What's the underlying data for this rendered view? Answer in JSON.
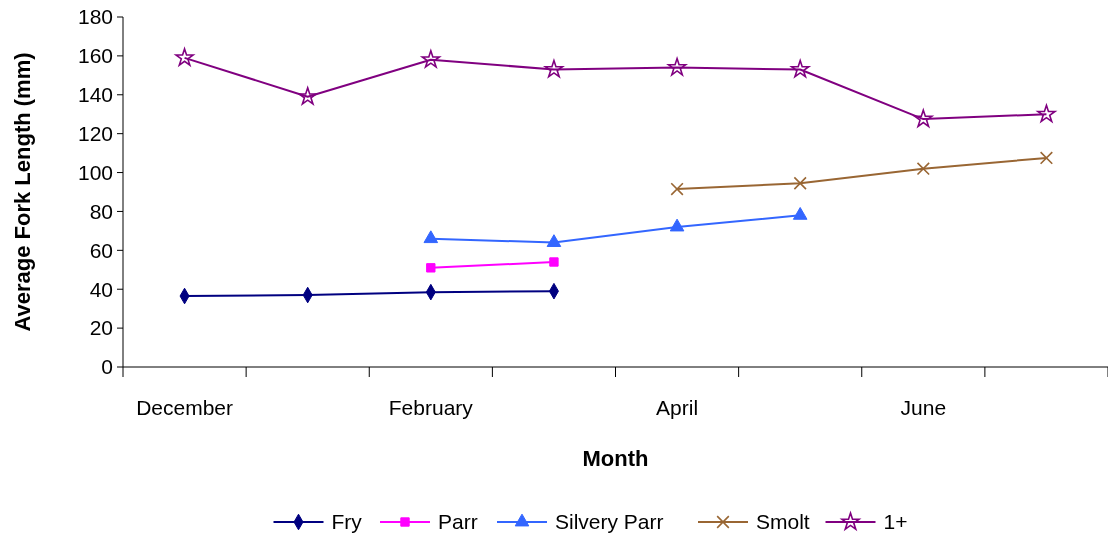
{
  "chart_data": {
    "type": "line",
    "xlabel": "Month",
    "ylabel": "Average Fork Length (mm)",
    "categories": [
      "December",
      null,
      "February",
      null,
      "April",
      null,
      "June",
      null
    ],
    "ylim": [
      0,
      180
    ],
    "yticks": [
      0,
      20,
      40,
      60,
      80,
      100,
      120,
      140,
      160,
      180
    ],
    "legend": "bottom",
    "grid": false,
    "series": [
      {
        "name": "Fry",
        "color": "#000080",
        "marker": "diamond",
        "values": [
          36.5,
          37,
          38.5,
          39,
          null,
          null,
          null,
          null
        ]
      },
      {
        "name": "Parr",
        "color": "#ff00ff",
        "marker": "square",
        "values": [
          null,
          null,
          51,
          54,
          null,
          null,
          null,
          null
        ]
      },
      {
        "name": "Silvery Parr",
        "color": "#3366ff",
        "marker": "triangle",
        "values": [
          null,
          null,
          66,
          64,
          72,
          78,
          null,
          null
        ]
      },
      {
        "name": "Smolt",
        "color": "#996633",
        "marker": "cross",
        "values": [
          null,
          null,
          null,
          null,
          91.5,
          94.5,
          102,
          107.5
        ]
      },
      {
        "name": "1+",
        "color": "#800080",
        "marker": "star",
        "values": [
          159,
          139,
          158,
          153,
          154,
          153,
          127.5,
          130
        ]
      }
    ]
  }
}
